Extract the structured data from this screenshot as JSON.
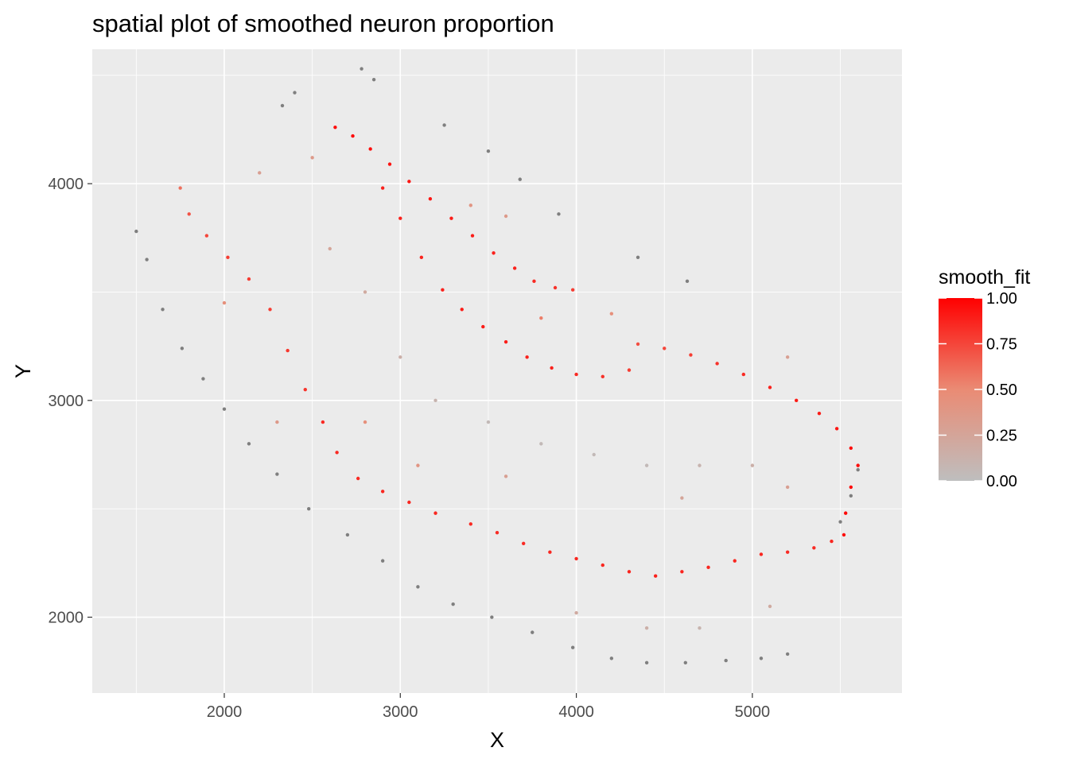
{
  "chart_data": {
    "type": "scatter",
    "title": "spatial plot of smoothed neuron proportion",
    "xlabel": "X",
    "ylabel": "Y",
    "xlim": [
      1250,
      5850
    ],
    "ylim": [
      1650,
      4620
    ],
    "x_ticks": [
      {
        "value": 2000,
        "label": "2000"
      },
      {
        "value": 3000,
        "label": "3000"
      },
      {
        "value": 4000,
        "label": "4000"
      },
      {
        "value": 5000,
        "label": "5000"
      }
    ],
    "y_ticks": [
      {
        "value": 2000,
        "label": "2000"
      },
      {
        "value": 3000,
        "label": "3000"
      },
      {
        "value": 4000,
        "label": "4000"
      }
    ],
    "grid": true,
    "legend": {
      "title": "smooth_fit",
      "position": "right",
      "range": [
        0,
        1
      ],
      "low_color": "#bebebe",
      "high_color": "#ff0000",
      "ticks": [
        {
          "value": 1.0,
          "label": "1.00"
        },
        {
          "value": 0.75,
          "label": "0.75"
        },
        {
          "value": 0.5,
          "label": "0.50"
        },
        {
          "value": 0.25,
          "label": "0.25"
        },
        {
          "value": 0.0,
          "label": "0.00"
        }
      ]
    },
    "na_color": "#7f7f7f",
    "points_sample": [
      [
        1500,
        3780,
        -1
      ],
      [
        1560,
        3650,
        -1
      ],
      [
        1650,
        3420,
        -1
      ],
      [
        1760,
        3240,
        -1
      ],
      [
        1880,
        3100,
        -1
      ],
      [
        2000,
        2960,
        -1
      ],
      [
        2140,
        2800,
        -1
      ],
      [
        2300,
        2660,
        -1
      ],
      [
        2480,
        2500,
        -1
      ],
      [
        2700,
        2380,
        -1
      ],
      [
        2900,
        2260,
        -1
      ],
      [
        3100,
        2140,
        -1
      ],
      [
        3300,
        2060,
        -1
      ],
      [
        3520,
        2000,
        -1
      ],
      [
        3750,
        1930,
        -1
      ],
      [
        3980,
        1860,
        -1
      ],
      [
        4200,
        1810,
        -1
      ],
      [
        4400,
        1790,
        -1
      ],
      [
        4620,
        1790,
        -1
      ],
      [
        4850,
        1800,
        -1
      ],
      [
        5050,
        1810,
        -1
      ],
      [
        5200,
        1830,
        -1
      ],
      [
        5560,
        2560,
        -1
      ],
      [
        5600,
        2680,
        -1
      ],
      [
        5500,
        2440,
        -1
      ],
      [
        2330,
        4360,
        -1
      ],
      [
        2400,
        4420,
        -1
      ],
      [
        2780,
        4530,
        -1
      ],
      [
        2850,
        4480,
        -1
      ],
      [
        3250,
        4270,
        -1
      ],
      [
        3500,
        4150,
        -1
      ],
      [
        3680,
        4020,
        -1
      ],
      [
        3900,
        3860,
        -1
      ],
      [
        4350,
        3660,
        -1
      ],
      [
        4630,
        3550,
        -1
      ],
      [
        2630,
        4260,
        0.95
      ],
      [
        2730,
        4220,
        0.97
      ],
      [
        2830,
        4160,
        0.95
      ],
      [
        2940,
        4090,
        0.93
      ],
      [
        3050,
        4010,
        0.92
      ],
      [
        3170,
        3930,
        0.92
      ],
      [
        3290,
        3840,
        0.9
      ],
      [
        3410,
        3760,
        0.9
      ],
      [
        3530,
        3680,
        0.88
      ],
      [
        3650,
        3610,
        0.88
      ],
      [
        3760,
        3550,
        0.85
      ],
      [
        3880,
        3520,
        0.82
      ],
      [
        3980,
        3510,
        0.78
      ],
      [
        2900,
        3980,
        0.88
      ],
      [
        3000,
        3840,
        0.88
      ],
      [
        3120,
        3660,
        0.87
      ],
      [
        3240,
        3510,
        0.88
      ],
      [
        3350,
        3420,
        0.9
      ],
      [
        3470,
        3340,
        0.9
      ],
      [
        3600,
        3270,
        0.9
      ],
      [
        3720,
        3200,
        0.88
      ],
      [
        3860,
        3150,
        0.88
      ],
      [
        4000,
        3120,
        0.85
      ],
      [
        4150,
        3110,
        0.82
      ],
      [
        4300,
        3140,
        0.78
      ],
      [
        4350,
        3260,
        0.72
      ],
      [
        4500,
        3240,
        0.75
      ],
      [
        4650,
        3210,
        0.78
      ],
      [
        4800,
        3170,
        0.82
      ],
      [
        4950,
        3120,
        0.85
      ],
      [
        5100,
        3060,
        0.88
      ],
      [
        5250,
        3000,
        0.9
      ],
      [
        5380,
        2940,
        0.9
      ],
      [
        5480,
        2870,
        0.92
      ],
      [
        5560,
        2780,
        0.95
      ],
      [
        5600,
        2700,
        0.95
      ],
      [
        5560,
        2600,
        0.97
      ],
      [
        5530,
        2480,
        0.97
      ],
      [
        5520,
        2380,
        0.95
      ],
      [
        1750,
        3980,
        0.6
      ],
      [
        1800,
        3860,
        0.7
      ],
      [
        1900,
        3760,
        0.75
      ],
      [
        2020,
        3660,
        0.78
      ],
      [
        2140,
        3560,
        0.78
      ],
      [
        2260,
        3420,
        0.78
      ],
      [
        2360,
        3230,
        0.8
      ],
      [
        2460,
        3050,
        0.82
      ],
      [
        2560,
        2900,
        0.85
      ],
      [
        2640,
        2760,
        0.85
      ],
      [
        2760,
        2640,
        0.85
      ],
      [
        2900,
        2580,
        0.86
      ],
      [
        3050,
        2530,
        0.86
      ],
      [
        3200,
        2480,
        0.86
      ],
      [
        3400,
        2430,
        0.85
      ],
      [
        3550,
        2390,
        0.84
      ],
      [
        3700,
        2340,
        0.85
      ],
      [
        3850,
        2300,
        0.86
      ],
      [
        4000,
        2270,
        0.86
      ],
      [
        4150,
        2240,
        0.86
      ],
      [
        4300,
        2210,
        0.87
      ],
      [
        4450,
        2190,
        0.88
      ],
      [
        4600,
        2210,
        0.87
      ],
      [
        4750,
        2230,
        0.86
      ],
      [
        4900,
        2260,
        0.86
      ],
      [
        5050,
        2290,
        0.86
      ],
      [
        5200,
        2300,
        0.85
      ],
      [
        5350,
        2320,
        0.85
      ],
      [
        5450,
        2350,
        0.86
      ],
      [
        2200,
        4050,
        0.3
      ],
      [
        2500,
        4120,
        0.35
      ],
      [
        2000,
        3450,
        0.45
      ],
      [
        2600,
        3700,
        0.25
      ],
      [
        2800,
        3500,
        0.2
      ],
      [
        3000,
        3200,
        0.15
      ],
      [
        3200,
        3000,
        0.1
      ],
      [
        3500,
        2900,
        0.05
      ],
      [
        3800,
        2800,
        0.05
      ],
      [
        4100,
        2750,
        0.05
      ],
      [
        4400,
        2700,
        0.05
      ],
      [
        4700,
        2700,
        0.1
      ],
      [
        5000,
        2700,
        0.15
      ],
      [
        5200,
        2600,
        0.3
      ],
      [
        4600,
        2550,
        0.25
      ],
      [
        3600,
        2650,
        0.3
      ],
      [
        3100,
        2700,
        0.4
      ],
      [
        2800,
        2900,
        0.45
      ],
      [
        4700,
        1950,
        0.1
      ],
      [
        4400,
        1950,
        0.15
      ],
      [
        4000,
        2020,
        0.2
      ],
      [
        5100,
        2050,
        0.2
      ],
      [
        2300,
        2900,
        0.35
      ],
      [
        3800,
        3380,
        0.55
      ],
      [
        3400,
        3900,
        0.4
      ],
      [
        3600,
        3850,
        0.35
      ],
      [
        5200,
        3200,
        0.3
      ],
      [
        4200,
        3400,
        0.45
      ]
    ]
  }
}
